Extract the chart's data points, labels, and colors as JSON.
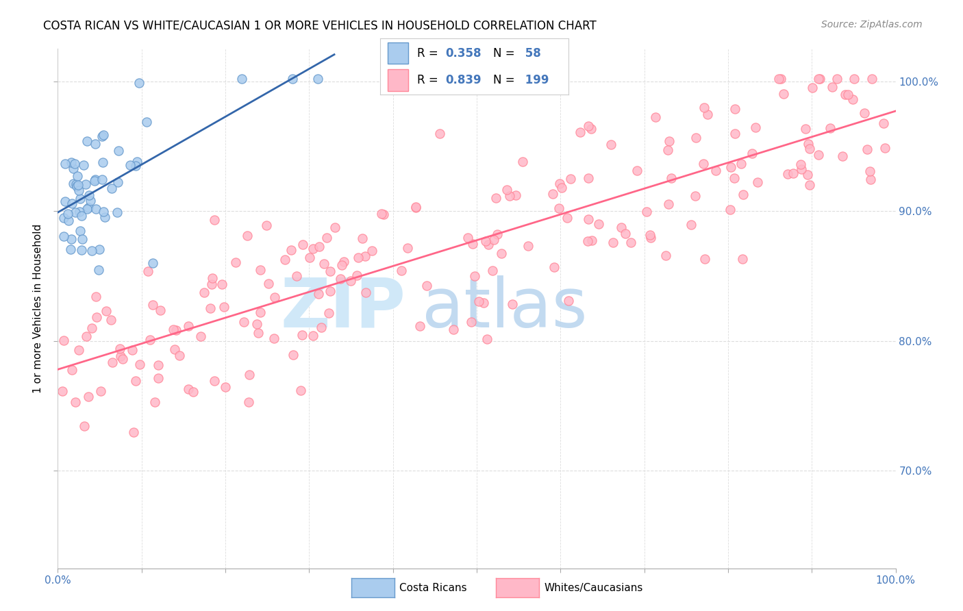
{
  "title": "COSTA RICAN VS WHITE/CAUCASIAN 1 OR MORE VEHICLES IN HOUSEHOLD CORRELATION CHART",
  "source": "Source: ZipAtlas.com",
  "ylabel": "1 or more Vehicles in Household",
  "xlim": [
    0.0,
    1.0
  ],
  "ylim": [
    0.625,
    1.025
  ],
  "yticks": [
    0.7,
    0.8,
    0.9,
    1.0
  ],
  "ytick_labels": [
    "70.0%",
    "80.0%",
    "90.0%",
    "100.0%"
  ],
  "xticks": [
    0.0,
    0.1,
    0.2,
    0.3,
    0.4,
    0.5,
    0.6,
    0.7,
    0.8,
    0.9,
    1.0
  ],
  "xtick_labels_show": [
    "0.0%",
    "",
    "",
    "",
    "",
    "",
    "",
    "",
    "",
    "",
    "100.0%"
  ],
  "legend_labels": [
    "Costa Ricans",
    "Whites/Caucasians"
  ],
  "blue_R": 0.358,
  "blue_N": 58,
  "pink_R": 0.839,
  "pink_N": 199,
  "blue_color": "#6699CC",
  "pink_color": "#FF8899",
  "blue_line_color": "#3366AA",
  "pink_line_color": "#FF6688",
  "blue_scatter_face": "#AACCEE",
  "pink_scatter_face": "#FFB8C8",
  "watermark_zip_color": "#D0E8F8",
  "watermark_atlas_color": "#B8D4EE",
  "background_color": "#FFFFFF",
  "title_fontsize": 12,
  "source_fontsize": 10,
  "axis_tick_color": "#4477BB",
  "grid_color": "#DDDDDD",
  "legend_border_color": "#CCCCCC",
  "blue_seed": 7,
  "pink_seed": 42
}
